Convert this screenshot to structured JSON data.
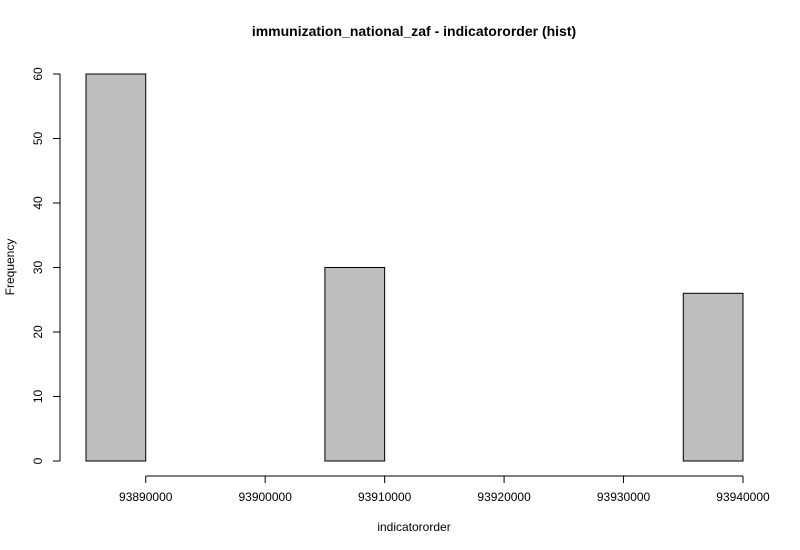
{
  "chart_data": {
    "type": "bar",
    "title": "immunization_national_zaf - indicatororder (hist)",
    "xlabel": "indicatororder",
    "ylabel": "Frequency",
    "bins": [
      {
        "start": 93885000,
        "end": 93890000,
        "count": 60
      },
      {
        "start": 93890000,
        "end": 93895000,
        "count": 0
      },
      {
        "start": 93895000,
        "end": 93900000,
        "count": 0
      },
      {
        "start": 93900000,
        "end": 93905000,
        "count": 0
      },
      {
        "start": 93905000,
        "end": 93910000,
        "count": 30
      },
      {
        "start": 93910000,
        "end": 93915000,
        "count": 0
      },
      {
        "start": 93915000,
        "end": 93920000,
        "count": 0
      },
      {
        "start": 93920000,
        "end": 93925000,
        "count": 0
      },
      {
        "start": 93925000,
        "end": 93930000,
        "count": 0
      },
      {
        "start": 93930000,
        "end": 93935000,
        "count": 0
      },
      {
        "start": 93935000,
        "end": 93940000,
        "count": 26
      }
    ],
    "xlim": [
      93885000,
      93940000
    ],
    "ylim": [
      0,
      60
    ],
    "x_ticks": [
      93890000,
      93900000,
      93910000,
      93920000,
      93930000,
      93940000
    ],
    "y_ticks": [
      0,
      10,
      20,
      30,
      40,
      50,
      60
    ],
    "bar_color": "#bebebe",
    "border_color": "#000000",
    "grid": false,
    "legend": "none"
  }
}
